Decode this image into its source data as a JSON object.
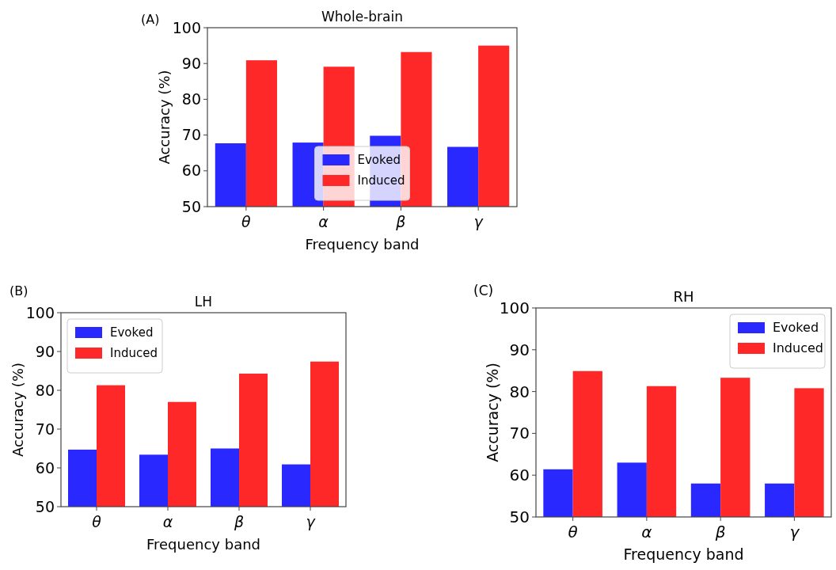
{
  "chart_data": [
    {
      "type": "bar",
      "title": "Whole-brain",
      "xlabel": "Frequency band",
      "ylabel": "Accuracy (%)",
      "annotations": [
        "(A)"
      ],
      "categories": [
        "θ",
        "α",
        "β",
        "γ"
      ],
      "series": [
        {
          "name": "Evoked",
          "color": "#2828ff",
          "values": [
            67.7,
            67.9,
            69.8,
            66.7
          ]
        },
        {
          "name": "Induced",
          "color": "#ff2828",
          "values": [
            90.9,
            89.1,
            93.2,
            95.0
          ]
        }
      ],
      "ylim": [
        50,
        100
      ],
      "yticks": [
        50,
        60,
        70,
        80,
        90,
        100
      ],
      "grid": false,
      "legend": "bottom"
    },
    {
      "type": "bar",
      "title": "LH",
      "xlabel": "Frequency band",
      "ylabel": "Accuracy (%)",
      "annotations": [
        "(B)"
      ],
      "categories": [
        "θ",
        "α",
        "β",
        "γ"
      ],
      "series": [
        {
          "name": "Evoked",
          "color": "#2828ff",
          "values": [
            64.7,
            63.4,
            65.0,
            60.9
          ]
        },
        {
          "name": "Induced",
          "color": "#ff2828",
          "values": [
            81.3,
            77.0,
            84.3,
            87.4
          ]
        }
      ],
      "ylim": [
        50,
        100
      ],
      "yticks": [
        50,
        60,
        70,
        80,
        90,
        100
      ],
      "grid": false,
      "legend": "top left"
    },
    {
      "type": "bar",
      "title": "RH",
      "xlabel": "Frequency band",
      "ylabel": "Accuracy (%)",
      "annotations": [
        "(C)"
      ],
      "categories": [
        "θ",
        "α",
        "β",
        "γ"
      ],
      "series": [
        {
          "name": "Evoked",
          "color": "#2828ff",
          "values": [
            61.4,
            63.0,
            58.0,
            58.0
          ]
        },
        {
          "name": "Induced",
          "color": "#ff2828",
          "values": [
            84.9,
            81.3,
            83.3,
            80.8
          ]
        }
      ],
      "ylim": [
        50,
        100
      ],
      "yticks": [
        50,
        60,
        70,
        80,
        90,
        100
      ],
      "grid": false,
      "legend": "top right"
    }
  ]
}
